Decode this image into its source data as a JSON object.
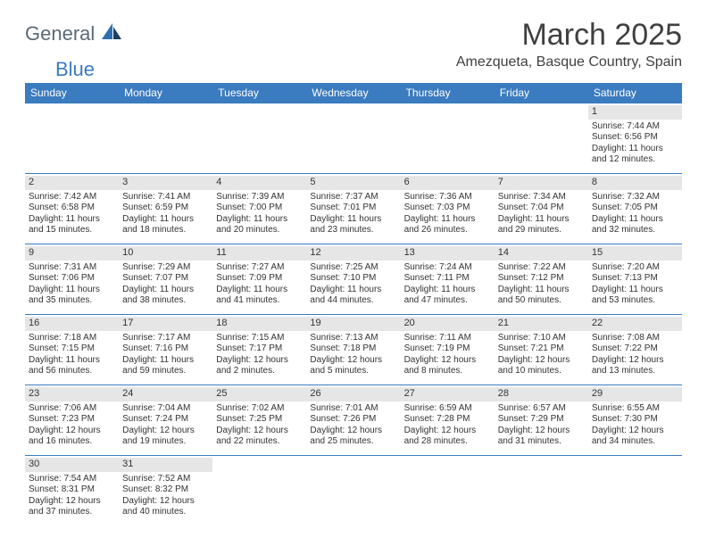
{
  "logo": {
    "general": "General",
    "blue": "Blue"
  },
  "title": "March 2025",
  "location": "Amezqueta, Basque Country, Spain",
  "dow": [
    "Sunday",
    "Monday",
    "Tuesday",
    "Wednesday",
    "Thursday",
    "Friday",
    "Saturday"
  ],
  "colors": {
    "header_bg": "#3b7bbf",
    "daynum_bg": "#e6e6e6",
    "border": "#3b7bbf"
  },
  "weeks": [
    [
      null,
      null,
      null,
      null,
      null,
      null,
      {
        "n": "1",
        "sr": "Sunrise: 7:44 AM",
        "ss": "Sunset: 6:56 PM",
        "dl": "Daylight: 11 hours and 12 minutes."
      }
    ],
    [
      {
        "n": "2",
        "sr": "Sunrise: 7:42 AM",
        "ss": "Sunset: 6:58 PM",
        "dl": "Daylight: 11 hours and 15 minutes."
      },
      {
        "n": "3",
        "sr": "Sunrise: 7:41 AM",
        "ss": "Sunset: 6:59 PM",
        "dl": "Daylight: 11 hours and 18 minutes."
      },
      {
        "n": "4",
        "sr": "Sunrise: 7:39 AM",
        "ss": "Sunset: 7:00 PM",
        "dl": "Daylight: 11 hours and 20 minutes."
      },
      {
        "n": "5",
        "sr": "Sunrise: 7:37 AM",
        "ss": "Sunset: 7:01 PM",
        "dl": "Daylight: 11 hours and 23 minutes."
      },
      {
        "n": "6",
        "sr": "Sunrise: 7:36 AM",
        "ss": "Sunset: 7:03 PM",
        "dl": "Daylight: 11 hours and 26 minutes."
      },
      {
        "n": "7",
        "sr": "Sunrise: 7:34 AM",
        "ss": "Sunset: 7:04 PM",
        "dl": "Daylight: 11 hours and 29 minutes."
      },
      {
        "n": "8",
        "sr": "Sunrise: 7:32 AM",
        "ss": "Sunset: 7:05 PM",
        "dl": "Daylight: 11 hours and 32 minutes."
      }
    ],
    [
      {
        "n": "9",
        "sr": "Sunrise: 7:31 AM",
        "ss": "Sunset: 7:06 PM",
        "dl": "Daylight: 11 hours and 35 minutes."
      },
      {
        "n": "10",
        "sr": "Sunrise: 7:29 AM",
        "ss": "Sunset: 7:07 PM",
        "dl": "Daylight: 11 hours and 38 minutes."
      },
      {
        "n": "11",
        "sr": "Sunrise: 7:27 AM",
        "ss": "Sunset: 7:09 PM",
        "dl": "Daylight: 11 hours and 41 minutes."
      },
      {
        "n": "12",
        "sr": "Sunrise: 7:25 AM",
        "ss": "Sunset: 7:10 PM",
        "dl": "Daylight: 11 hours and 44 minutes."
      },
      {
        "n": "13",
        "sr": "Sunrise: 7:24 AM",
        "ss": "Sunset: 7:11 PM",
        "dl": "Daylight: 11 hours and 47 minutes."
      },
      {
        "n": "14",
        "sr": "Sunrise: 7:22 AM",
        "ss": "Sunset: 7:12 PM",
        "dl": "Daylight: 11 hours and 50 minutes."
      },
      {
        "n": "15",
        "sr": "Sunrise: 7:20 AM",
        "ss": "Sunset: 7:13 PM",
        "dl": "Daylight: 11 hours and 53 minutes."
      }
    ],
    [
      {
        "n": "16",
        "sr": "Sunrise: 7:18 AM",
        "ss": "Sunset: 7:15 PM",
        "dl": "Daylight: 11 hours and 56 minutes."
      },
      {
        "n": "17",
        "sr": "Sunrise: 7:17 AM",
        "ss": "Sunset: 7:16 PM",
        "dl": "Daylight: 11 hours and 59 minutes."
      },
      {
        "n": "18",
        "sr": "Sunrise: 7:15 AM",
        "ss": "Sunset: 7:17 PM",
        "dl": "Daylight: 12 hours and 2 minutes."
      },
      {
        "n": "19",
        "sr": "Sunrise: 7:13 AM",
        "ss": "Sunset: 7:18 PM",
        "dl": "Daylight: 12 hours and 5 minutes."
      },
      {
        "n": "20",
        "sr": "Sunrise: 7:11 AM",
        "ss": "Sunset: 7:19 PM",
        "dl": "Daylight: 12 hours and 8 minutes."
      },
      {
        "n": "21",
        "sr": "Sunrise: 7:10 AM",
        "ss": "Sunset: 7:21 PM",
        "dl": "Daylight: 12 hours and 10 minutes."
      },
      {
        "n": "22",
        "sr": "Sunrise: 7:08 AM",
        "ss": "Sunset: 7:22 PM",
        "dl": "Daylight: 12 hours and 13 minutes."
      }
    ],
    [
      {
        "n": "23",
        "sr": "Sunrise: 7:06 AM",
        "ss": "Sunset: 7:23 PM",
        "dl": "Daylight: 12 hours and 16 minutes."
      },
      {
        "n": "24",
        "sr": "Sunrise: 7:04 AM",
        "ss": "Sunset: 7:24 PM",
        "dl": "Daylight: 12 hours and 19 minutes."
      },
      {
        "n": "25",
        "sr": "Sunrise: 7:02 AM",
        "ss": "Sunset: 7:25 PM",
        "dl": "Daylight: 12 hours and 22 minutes."
      },
      {
        "n": "26",
        "sr": "Sunrise: 7:01 AM",
        "ss": "Sunset: 7:26 PM",
        "dl": "Daylight: 12 hours and 25 minutes."
      },
      {
        "n": "27",
        "sr": "Sunrise: 6:59 AM",
        "ss": "Sunset: 7:28 PM",
        "dl": "Daylight: 12 hours and 28 minutes."
      },
      {
        "n": "28",
        "sr": "Sunrise: 6:57 AM",
        "ss": "Sunset: 7:29 PM",
        "dl": "Daylight: 12 hours and 31 minutes."
      },
      {
        "n": "29",
        "sr": "Sunrise: 6:55 AM",
        "ss": "Sunset: 7:30 PM",
        "dl": "Daylight: 12 hours and 34 minutes."
      }
    ],
    [
      {
        "n": "30",
        "sr": "Sunrise: 7:54 AM",
        "ss": "Sunset: 8:31 PM",
        "dl": "Daylight: 12 hours and 37 minutes."
      },
      {
        "n": "31",
        "sr": "Sunrise: 7:52 AM",
        "ss": "Sunset: 8:32 PM",
        "dl": "Daylight: 12 hours and 40 minutes."
      },
      null,
      null,
      null,
      null,
      null
    ]
  ]
}
